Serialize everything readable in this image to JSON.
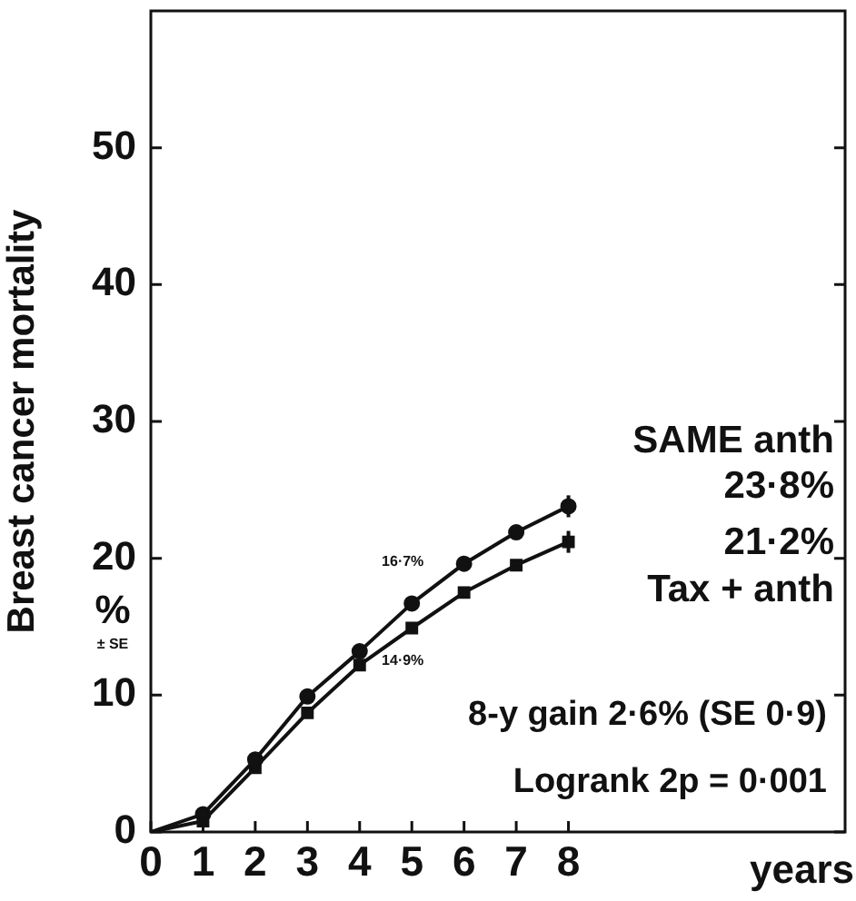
{
  "chart_data": {
    "type": "line",
    "ylabel": "Breast cancer mortality",
    "xlabel": "years",
    "x": [
      0,
      1,
      2,
      3,
      4,
      5,
      6,
      7,
      8
    ],
    "series": [
      {
        "name": "SAME anth",
        "color": "#111111",
        "marker": "circle",
        "values": [
          0,
          1.3,
          5.3,
          9.9,
          13.2,
          16.7,
          19.6,
          21.9,
          23.8
        ],
        "errors": [
          null,
          null,
          null,
          null,
          null,
          null,
          null,
          null,
          0.8
        ]
      },
      {
        "name": "Tax + anth",
        "color": "#111111",
        "marker": "square",
        "values": [
          0,
          0.8,
          4.7,
          8.7,
          12.2,
          14.9,
          17.5,
          19.5,
          21.2
        ],
        "errors": [
          null,
          null,
          null,
          null,
          null,
          null,
          null,
          null,
          0.8
        ]
      }
    ],
    "xlim": [
      0,
      13.3
    ],
    "xticks": [
      0,
      1,
      2,
      3,
      4,
      5,
      6,
      7,
      8
    ],
    "ylim": [
      0,
      60
    ],
    "yticks": [
      0,
      10,
      20,
      30,
      40,
      50
    ],
    "grid": false,
    "legend": "right",
    "annotations": [
      {
        "text": "16·7%",
        "x": 5,
        "y": 16.7
      },
      {
        "text": "14·9%",
        "x": 5,
        "y": 14.9
      },
      "23·8%",
      "21·2%",
      "%",
      "± SE",
      "8-y gain 2·6% (SE 0·9)",
      "Logrank 2p = 0·001"
    ]
  }
}
